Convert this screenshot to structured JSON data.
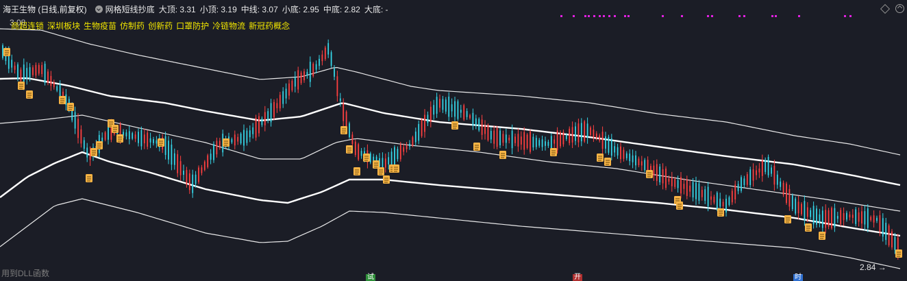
{
  "header": {
    "stock_title": "海王生物 (日线,前复权)",
    "indicator_name": "网格短线抄底",
    "top_major": "大顶: 3.31",
    "top_minor": "小顶: 3.19",
    "mid_line": "中线: 3.07",
    "bottom_minor": "小底: 2.95",
    "bottom_mid": "中底: 2.82",
    "bottom_major": "大底: -"
  },
  "concepts": [
    "商超连锁",
    "深圳板块",
    "生物疫苗",
    "仿制药",
    "创新药",
    "口罩防护",
    "冷链物流",
    "新冠药概念"
  ],
  "price_top_label": "3.08",
  "low_label": "2.84 →",
  "dll_label": "用到DLL函数",
  "bottom_markers": [
    "试",
    "开",
    "时"
  ],
  "colors": {
    "background": "#1b1d26",
    "up_candle": "#ff4040",
    "down_candle": "#35d6e8",
    "band_line": "#ffffff",
    "signal_icon": "#f7b445",
    "magenta_marks": "#e020e0",
    "concept_text": "#f2e600"
  },
  "icons": [
    "indicator-toggle-icon",
    "diamond-icon",
    "collapse-icon",
    "signal-doc-icon"
  ]
}
